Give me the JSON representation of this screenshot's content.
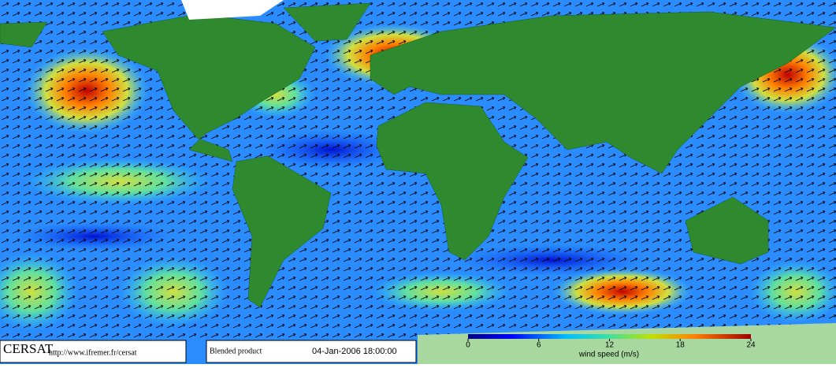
{
  "footer": {
    "logo": "CERSAT",
    "url": "http://www.ifremer.fr/cersat",
    "product": "Blended product",
    "date": "04-Jan-2006 18:00:00"
  },
  "colorbar": {
    "label": "wind speed (m/s)",
    "lim": [
      0,
      24
    ],
    "ticks": [
      0,
      6,
      12,
      18,
      24
    ]
  }
}
